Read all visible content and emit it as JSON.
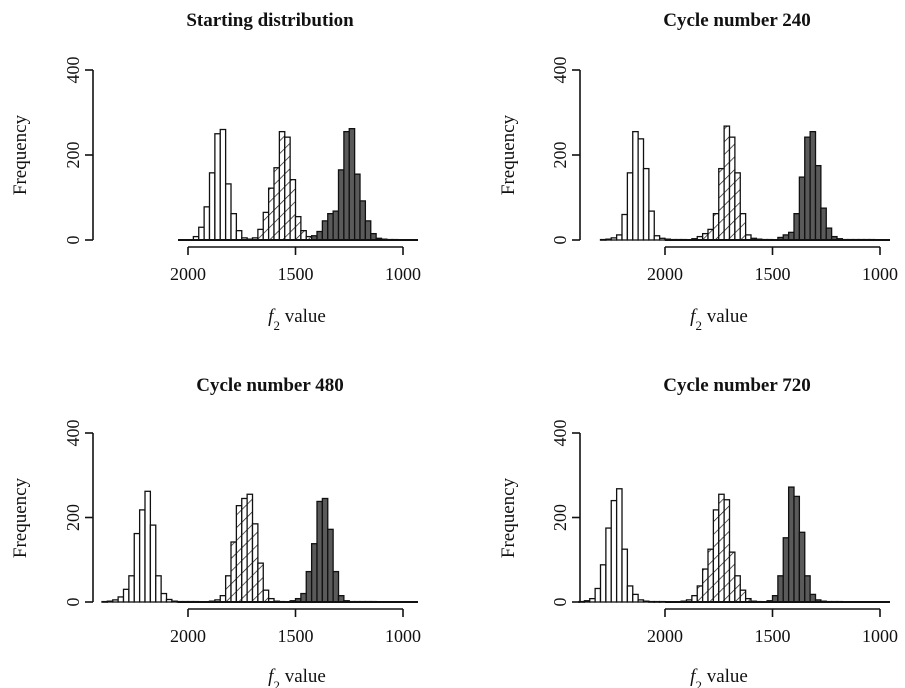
{
  "colors": {
    "series_a": "#ffffff",
    "series_b": "#ffffff",
    "series_c": "#5a5a5a",
    "stroke": "#111111"
  },
  "chart_data": [
    {
      "type": "bar",
      "title": "Starting distribution",
      "xlabel_main": "f",
      "xlabel_sub": "2",
      "xlabel_rest": " value",
      "ylabel": "Frequency",
      "x_reversed": true,
      "xlim": [
        950,
        2080
      ],
      "ylim": [
        0,
        400
      ],
      "x_ticks": [
        2000,
        1500,
        1000
      ],
      "y_ticks": [
        0,
        200,
        400
      ],
      "bin_width": 25,
      "series": [
        {
          "fill": "open",
          "x": [
            1962.5,
            1937.5,
            1912.5,
            1887.5,
            1862.5,
            1837.5,
            1812.5,
            1787.5,
            1762.5,
            1737.5,
            1712.5,
            1687.5
          ],
          "values": [
            8,
            30,
            78,
            158,
            250,
            260,
            132,
            62,
            22,
            5,
            2,
            1
          ]
        },
        {
          "fill": "hatched",
          "x": [
            1712.5,
            1687.5,
            1662.5,
            1637.5,
            1612.5,
            1587.5,
            1562.5,
            1537.5,
            1512.5,
            1487.5,
            1462.5,
            1437.5,
            1412.5,
            1387.5
          ],
          "values": [
            2,
            5,
            25,
            65,
            122,
            170,
            255,
            242,
            142,
            55,
            22,
            8,
            2,
            1
          ]
        },
        {
          "fill": "dark",
          "x": [
            1412.5,
            1387.5,
            1362.5,
            1337.5,
            1312.5,
            1287.5,
            1262.5,
            1237.5,
            1212.5,
            1187.5,
            1162.5,
            1137.5,
            1112.5,
            1087.5,
            1062.5,
            1037.5
          ],
          "values": [
            10,
            20,
            45,
            62,
            68,
            165,
            255,
            262,
            155,
            92,
            45,
            15,
            4,
            2,
            1,
            1
          ]
        }
      ]
    },
    {
      "type": "bar",
      "title": "Cycle number 240",
      "xlabel_main": "f",
      "xlabel_sub": "2",
      "xlabel_rest": " value",
      "ylabel": "Frequency",
      "x_reversed": true,
      "xlim": [
        950,
        2300
      ],
      "ylim": [
        0,
        400
      ],
      "x_ticks": [
        2000,
        1500,
        1000
      ],
      "y_ticks": [
        0,
        200,
        400
      ],
      "bin_width": 25,
      "series": [
        {
          "fill": "open",
          "x": [
            2287.5,
            2262.5,
            2237.5,
            2212.5,
            2187.5,
            2162.5,
            2137.5,
            2112.5,
            2087.5,
            2062.5,
            2037.5,
            2012.5,
            1987.5,
            1962.5,
            1937.5,
            1912.5
          ],
          "values": [
            1,
            2,
            5,
            12,
            60,
            158,
            255,
            238,
            168,
            68,
            10,
            4,
            2,
            1,
            1,
            1
          ]
        },
        {
          "fill": "hatched",
          "x": [
            1862.5,
            1837.5,
            1812.5,
            1787.5,
            1762.5,
            1737.5,
            1712.5,
            1687.5,
            1662.5,
            1637.5,
            1612.5,
            1587.5,
            1562.5,
            1537.5,
            1512.5
          ],
          "values": [
            3,
            8,
            15,
            25,
            62,
            168,
            268,
            242,
            158,
            62,
            12,
            4,
            2,
            1,
            1
          ]
        },
        {
          "fill": "dark",
          "x": [
            1462.5,
            1437.5,
            1412.5,
            1387.5,
            1362.5,
            1337.5,
            1312.5,
            1287.5,
            1262.5,
            1237.5,
            1212.5,
            1187.5,
            1162.5,
            1137.5,
            1112.5,
            1087.5,
            1062.5,
            1037.5
          ],
          "values": [
            6,
            12,
            18,
            62,
            148,
            242,
            255,
            175,
            75,
            28,
            8,
            3,
            1,
            1,
            1,
            1,
            1,
            1
          ]
        }
      ]
    },
    {
      "type": "bar",
      "title": "Cycle number 480",
      "xlabel_main": "f",
      "xlabel_sub": "2",
      "xlabel_rest": " value",
      "ylabel": "Frequency",
      "x_reversed": true,
      "xlim": [
        950,
        2400
      ],
      "ylim": [
        0,
        400
      ],
      "x_ticks": [
        2000,
        1500,
        1000
      ],
      "y_ticks": [
        0,
        200,
        400
      ],
      "bin_width": 25,
      "series": [
        {
          "fill": "open",
          "x": [
            2387.5,
            2362.5,
            2337.5,
            2312.5,
            2287.5,
            2262.5,
            2237.5,
            2212.5,
            2187.5,
            2162.5,
            2137.5,
            2112.5,
            2087.5,
            2062.5,
            2037.5,
            2012.5,
            1987.5,
            1962.5
          ],
          "values": [
            1,
            2,
            5,
            12,
            30,
            62,
            162,
            218,
            262,
            182,
            62,
            20,
            6,
            2,
            1,
            1,
            1,
            1
          ]
        },
        {
          "fill": "hatched",
          "x": [
            1887.5,
            1862.5,
            1837.5,
            1812.5,
            1787.5,
            1762.5,
            1737.5,
            1712.5,
            1687.5,
            1662.5,
            1637.5,
            1612.5,
            1587.5,
            1562.5
          ],
          "values": [
            2,
            5,
            15,
            62,
            142,
            228,
            245,
            255,
            185,
            92,
            28,
            8,
            2,
            1
          ]
        },
        {
          "fill": "dark",
          "x": [
            1512.5,
            1487.5,
            1462.5,
            1437.5,
            1412.5,
            1387.5,
            1362.5,
            1337.5,
            1312.5,
            1287.5,
            1262.5,
            1237.5,
            1212.5,
            1187.5,
            1162.5,
            1137.5
          ],
          "values": [
            3,
            8,
            20,
            72,
            138,
            238,
            245,
            172,
            72,
            15,
            3,
            1,
            1,
            1,
            1,
            1
          ]
        }
      ]
    },
    {
      "type": "bar",
      "title": "Cycle number 720",
      "xlabel_main": "f",
      "xlabel_sub": "2",
      "xlabel_rest": " value",
      "ylabel": "Frequency",
      "x_reversed": true,
      "xlim": [
        950,
        2400
      ],
      "ylim": [
        0,
        400
      ],
      "x_ticks": [
        2000,
        1500,
        1000
      ],
      "y_ticks": [
        0,
        200,
        400
      ],
      "bin_width": 25,
      "series": [
        {
          "fill": "open",
          "x": [
            2387.5,
            2362.5,
            2337.5,
            2312.5,
            2287.5,
            2262.5,
            2237.5,
            2212.5,
            2187.5,
            2162.5,
            2137.5,
            2112.5,
            2087.5,
            2062.5,
            2037.5,
            2012.5
          ],
          "values": [
            1,
            3,
            8,
            32,
            88,
            175,
            240,
            268,
            125,
            38,
            18,
            5,
            2,
            1,
            1,
            1
          ]
        },
        {
          "fill": "hatched",
          "x": [
            1912.5,
            1887.5,
            1862.5,
            1837.5,
            1812.5,
            1787.5,
            1762.5,
            1737.5,
            1712.5,
            1687.5,
            1662.5,
            1637.5,
            1612.5,
            1587.5,
            1562.5
          ],
          "values": [
            2,
            5,
            15,
            38,
            78,
            125,
            218,
            255,
            242,
            118,
            62,
            28,
            8,
            2,
            1
          ]
        },
        {
          "fill": "dark",
          "x": [
            1512.5,
            1487.5,
            1462.5,
            1437.5,
            1412.5,
            1387.5,
            1362.5,
            1337.5,
            1312.5,
            1287.5,
            1262.5,
            1237.5,
            1212.5,
            1187.5
          ],
          "values": [
            3,
            15,
            62,
            152,
            272,
            250,
            165,
            62,
            18,
            5,
            2,
            1,
            1,
            1
          ]
        }
      ]
    }
  ]
}
